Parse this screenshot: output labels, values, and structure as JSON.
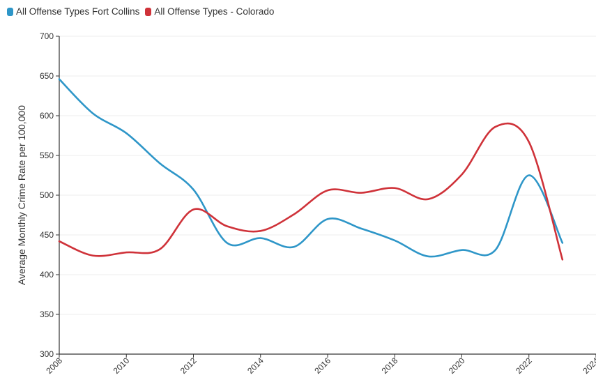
{
  "chart_data": {
    "type": "line",
    "title": "",
    "xlabel": "",
    "ylabel": "Average Monthly Crime Rate per 100,000",
    "xlim": [
      2008,
      2024
    ],
    "ylim": [
      300,
      700
    ],
    "xticks": [
      2008,
      2010,
      2012,
      2014,
      2016,
      2018,
      2020,
      2022,
      2024
    ],
    "xtick_labels": [
      "2008",
      "2010",
      "2012",
      "2014",
      "2016",
      "2018",
      "2020",
      "2022",
      "2024"
    ],
    "yticks": [
      300,
      350,
      400,
      450,
      500,
      550,
      600,
      650,
      700
    ],
    "ytick_labels": [
      "300",
      "350",
      "400",
      "450",
      "500",
      "550",
      "600",
      "650",
      "700"
    ],
    "grid": true,
    "legend_position": "top-left",
    "series": [
      {
        "name": "All Offense Types Fort Collins",
        "color": "#2e96c8",
        "x": [
          2008,
          2009,
          2010,
          2011,
          2012,
          2013,
          2014,
          2015,
          2016,
          2017,
          2018,
          2019,
          2020,
          2021,
          2022,
          2023
        ],
        "y": [
          646,
          603,
          578,
          540,
          507,
          440,
          446,
          435,
          470,
          458,
          443,
          423,
          431,
          431,
          525,
          440
        ]
      },
      {
        "name": "All Offense Types - Colorado",
        "color": "#cf3239",
        "x": [
          2008,
          2009,
          2010,
          2011,
          2012,
          2013,
          2014,
          2015,
          2016,
          2017,
          2018,
          2019,
          2020,
          2021,
          2022,
          2023
        ],
        "y": [
          442,
          424,
          428,
          432,
          482,
          461,
          455,
          476,
          506,
          503,
          509,
          495,
          526,
          586,
          567,
          419
        ]
      }
    ]
  }
}
